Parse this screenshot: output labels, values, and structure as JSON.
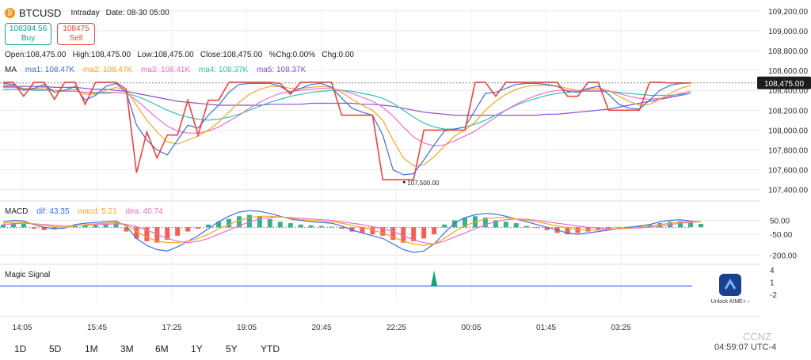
{
  "header": {
    "symbol": "BTCUSD",
    "mode": "Intraday",
    "date_label": "Date: 08-30 05:00",
    "buy_price": "108394.56",
    "buy_label": "Buy",
    "sell_price": "108475",
    "sell_label": "Sell"
  },
  "ohlc": {
    "open": "Open:108,475.00",
    "high": "High:108,475.00",
    "low": "Low:108,475.00",
    "close": "Close:108,475.00",
    "pct": "%Chg:0.00%",
    "chg": "Chg:0.00"
  },
  "ma_legend": {
    "title": "MA",
    "items": [
      {
        "label": "ma1: 108.47K",
        "color": "#3b6fe0"
      },
      {
        "label": "ma2: 108.47K",
        "color": "#f5a623"
      },
      {
        "label": "ma3: 108.41K",
        "color": "#ef6fc7"
      },
      {
        "label": "ma4: 108.37K",
        "color": "#2ec4b6"
      },
      {
        "label": "ma5: 108.37K",
        "color": "#8a4fd1"
      }
    ]
  },
  "macd_legend": {
    "title": "MACD",
    "items": [
      {
        "label": "dif: 43.35",
        "color": "#3b6fe0"
      },
      {
        "label": "macd: 5.21",
        "color": "#f5a623"
      },
      {
        "label": "dea: 40.74",
        "color": "#ef6fc7"
      }
    ]
  },
  "signal_title": "Magic Signal",
  "unlock_label": "Unlock AIME+ ›",
  "time_label": "04:59:07 UTC-4",
  "watermark": "CCNZ",
  "tabs": [
    "1D",
    "5D",
    "1M",
    "3M",
    "6M",
    "1Y",
    "5Y",
    "YTD"
  ],
  "colors": {
    "price": "#f0443a",
    "up": "#14a37f",
    "down": "#f0443a",
    "grid": "#e9e9e9",
    "signal": "#3b6fe0"
  },
  "chart_data": [
    {
      "type": "line",
      "panel": "price",
      "x_ticks": [
        "14:05",
        "15:45",
        "17:25",
        "19:05",
        "20:45",
        "22:25",
        "00:05",
        "01:45",
        "03:25"
      ],
      "y_ticks": [
        "109,200.00",
        "109,000.00",
        "108,800.00",
        "108,600.00",
        "108,400.00",
        "108,200.00",
        "108,000.00",
        "107,800.00",
        "107,600.00",
        "107,400.00"
      ],
      "ylim": [
        107350,
        109230
      ],
      "last_price_label": "108,475.00",
      "last_price": 108475,
      "low_annotation": "107,500.00",
      "low_value": 107500,
      "series": [
        {
          "key": "price",
          "values": [
            108480,
            108480,
            108340,
            108480,
            108480,
            108310,
            108480,
            108480,
            108260,
            108480,
            108480,
            108480,
            108410,
            107570,
            107980,
            107720,
            107950,
            107950,
            108300,
            107950,
            108300,
            108300,
            108480,
            108480,
            108480,
            108480,
            108480,
            108470,
            108360,
            108480,
            108480,
            108480,
            108480,
            108150,
            108150,
            108150,
            108150,
            107500,
            107500,
            107500,
            107500,
            108000,
            108000,
            108000,
            108000,
            108000,
            108480,
            108480,
            108340,
            108480,
            108480,
            108480,
            108480,
            108480,
            108480,
            108340,
            108340,
            108480,
            108480,
            108200,
            108200,
            108200,
            108200,
            108480,
            108480,
            108475,
            108475,
            108475
          ]
        },
        {
          "key": "ma1",
          "values": [
            108470,
            108460,
            108400,
            108420,
            108460,
            108380,
            108400,
            108440,
            108300,
            108350,
            108440,
            108470,
            108380,
            108050,
            107900,
            107800,
            107750,
            107900,
            108050,
            108020,
            108150,
            108250,
            108380,
            108460,
            108470,
            108470,
            108470,
            108440,
            108380,
            108420,
            108460,
            108470,
            108430,
            108320,
            108220,
            108180,
            108150,
            107950,
            107600,
            107550,
            107560,
            107700,
            107850,
            107990,
            108010,
            108030,
            108200,
            108370,
            108380,
            108420,
            108460,
            108470,
            108470,
            108460,
            108440,
            108390,
            108380,
            108420,
            108440,
            108360,
            108260,
            108220,
            108210,
            108300,
            108400,
            108450,
            108470,
            108475
          ]
        },
        {
          "key": "ma2",
          "values": [
            108450,
            108450,
            108420,
            108420,
            108430,
            108400,
            108400,
            108410,
            108360,
            108360,
            108400,
            108430,
            108400,
            108250,
            108100,
            107980,
            107880,
            107860,
            107900,
            107940,
            108000,
            108080,
            108180,
            108280,
            108360,
            108410,
            108440,
            108440,
            108420,
            108420,
            108430,
            108440,
            108430,
            108380,
            108310,
            108250,
            108200,
            108100,
            107900,
            107720,
            107640,
            107650,
            107730,
            107840,
            107940,
            108000,
            108080,
            108200,
            108290,
            108360,
            108410,
            108440,
            108450,
            108450,
            108440,
            108420,
            108400,
            108410,
            108420,
            108400,
            108340,
            108290,
            108250,
            108260,
            108310,
            108370,
            108420,
            108450
          ]
        },
        {
          "key": "ma3",
          "values": [
            108430,
            108430,
            108420,
            108410,
            108410,
            108400,
            108390,
            108390,
            108380,
            108370,
            108370,
            108380,
            108370,
            108300,
            108210,
            108120,
            108040,
            107990,
            107970,
            107970,
            107990,
            108030,
            108090,
            108150,
            108220,
            108280,
            108330,
            108370,
            108390,
            108400,
            108410,
            108420,
            108420,
            108400,
            108370,
            108330,
            108290,
            108230,
            108140,
            108030,
            107930,
            107870,
            107840,
            107850,
            107890,
            107940,
            107990,
            108060,
            108130,
            108200,
            108260,
            108310,
            108350,
            108380,
            108400,
            108400,
            108400,
            108400,
            108400,
            108390,
            108370,
            108340,
            108320,
            108310,
            108320,
            108340,
            108370,
            108390
          ]
        },
        {
          "key": "ma4",
          "values": [
            108410,
            108410,
            108410,
            108400,
            108400,
            108400,
            108390,
            108390,
            108380,
            108380,
            108380,
            108380,
            108370,
            108340,
            108300,
            108250,
            108200,
            108160,
            108130,
            108110,
            108100,
            108110,
            108130,
            108160,
            108200,
            108240,
            108280,
            108310,
            108340,
            108360,
            108380,
            108390,
            108400,
            108400,
            108390,
            108370,
            108350,
            108320,
            108270,
            108200,
            108130,
            108070,
            108030,
            108010,
            108010,
            108030,
            108060,
            108100,
            108150,
            108200,
            108250,
            108290,
            108320,
            108350,
            108370,
            108380,
            108390,
            108390,
            108390,
            108390,
            108380,
            108370,
            108360,
            108350,
            108350,
            108350,
            108360,
            108370
          ]
        },
        {
          "key": "ma5",
          "values": [
            108440,
            108440,
            108440,
            108440,
            108440,
            108430,
            108430,
            108430,
            108420,
            108410,
            108410,
            108400,
            108390,
            108370,
            108350,
            108330,
            108310,
            108290,
            108280,
            108270,
            108260,
            108250,
            108250,
            108250,
            108250,
            108250,
            108260,
            108260,
            108260,
            108260,
            108270,
            108270,
            108270,
            108270,
            108270,
            108260,
            108260,
            108250,
            108240,
            108220,
            108200,
            108180,
            108170,
            108160,
            108150,
            108150,
            108150,
            108150,
            108150,
            108150,
            108150,
            108150,
            108150,
            108160,
            108160,
            108170,
            108180,
            108190,
            108200,
            108210,
            108230,
            108250,
            108270,
            108290,
            108310,
            108330,
            108350,
            108370
          ]
        }
      ]
    },
    {
      "type": "bar",
      "panel": "macd",
      "y_ticks": [
        "50.00",
        "-50.00",
        "-200.00"
      ],
      "ylim": [
        -220,
        110
      ],
      "histogram": [
        20,
        30,
        25,
        -10,
        -20,
        -15,
        -5,
        10,
        15,
        20,
        25,
        30,
        -30,
        -80,
        -100,
        -110,
        -90,
        -60,
        -30,
        -10,
        20,
        40,
        60,
        80,
        90,
        80,
        60,
        40,
        30,
        20,
        15,
        10,
        5,
        -10,
        -30,
        -40,
        -50,
        -60,
        -90,
        -110,
        -100,
        -80,
        -50,
        20,
        50,
        70,
        80,
        70,
        50,
        40,
        30,
        10,
        -5,
        -20,
        -40,
        -50,
        -40,
        -30,
        -20,
        -10,
        -5,
        5,
        10,
        20,
        30,
        40,
        45,
        35,
        25
      ],
      "series": [
        {
          "key": "dif",
          "values": [
            40,
            50,
            45,
            20,
            0,
            -10,
            -5,
            20,
            30,
            35,
            40,
            45,
            10,
            -80,
            -130,
            -160,
            -170,
            -140,
            -100,
            -60,
            -10,
            40,
            80,
            110,
            120,
            115,
            100,
            80,
            60,
            50,
            40,
            35,
            30,
            10,
            -20,
            -40,
            -60,
            -80,
            -120,
            -160,
            -180,
            -170,
            -120,
            -40,
            30,
            70,
            90,
            100,
            95,
            80,
            60,
            40,
            20,
            0,
            -20,
            -40,
            -50,
            -40,
            -30,
            -20,
            -10,
            0,
            10,
            20,
            40,
            50,
            55,
            45,
            40
          ]
        },
        {
          "key": "dea",
          "values": [
            20,
            25,
            30,
            25,
            20,
            15,
            10,
            12,
            15,
            18,
            22,
            25,
            22,
            5,
            -20,
            -50,
            -80,
            -100,
            -110,
            -100,
            -80,
            -50,
            -20,
            10,
            40,
            60,
            70,
            75,
            70,
            65,
            60,
            55,
            50,
            40,
            30,
            20,
            5,
            -10,
            -30,
            -60,
            -90,
            -110,
            -120,
            -100,
            -70,
            -40,
            -10,
            20,
            40,
            55,
            60,
            58,
            50,
            40,
            30,
            20,
            10,
            0,
            -5,
            -10,
            -10,
            -8,
            -5,
            0,
            10,
            20,
            30,
            35,
            40
          ]
        },
        {
          "key": "macd",
          "values": [
            30,
            35,
            35,
            25,
            15,
            5,
            0,
            10,
            20,
            25,
            30,
            35,
            20,
            -30,
            -70,
            -100,
            -110,
            -110,
            -100,
            -80,
            -50,
            -10,
            20,
            50,
            70,
            80,
            80,
            75,
            65,
            55,
            50,
            45,
            40,
            30,
            15,
            0,
            -20,
            -40,
            -70,
            -100,
            -120,
            -130,
            -120,
            -80,
            -30,
            10,
            40,
            60,
            70,
            70,
            60,
            50,
            40,
            25,
            10,
            -5,
            -15,
            -20,
            -20,
            -15,
            -10,
            -5,
            0,
            10,
            20,
            30,
            40,
            42,
            40
          ]
        }
      ]
    },
    {
      "type": "line",
      "panel": "signal",
      "y_ticks": [
        "4",
        "1",
        "-2"
      ],
      "ylim": [
        -4,
        4
      ],
      "signal_index": 42,
      "values": [
        0
      ]
    }
  ]
}
